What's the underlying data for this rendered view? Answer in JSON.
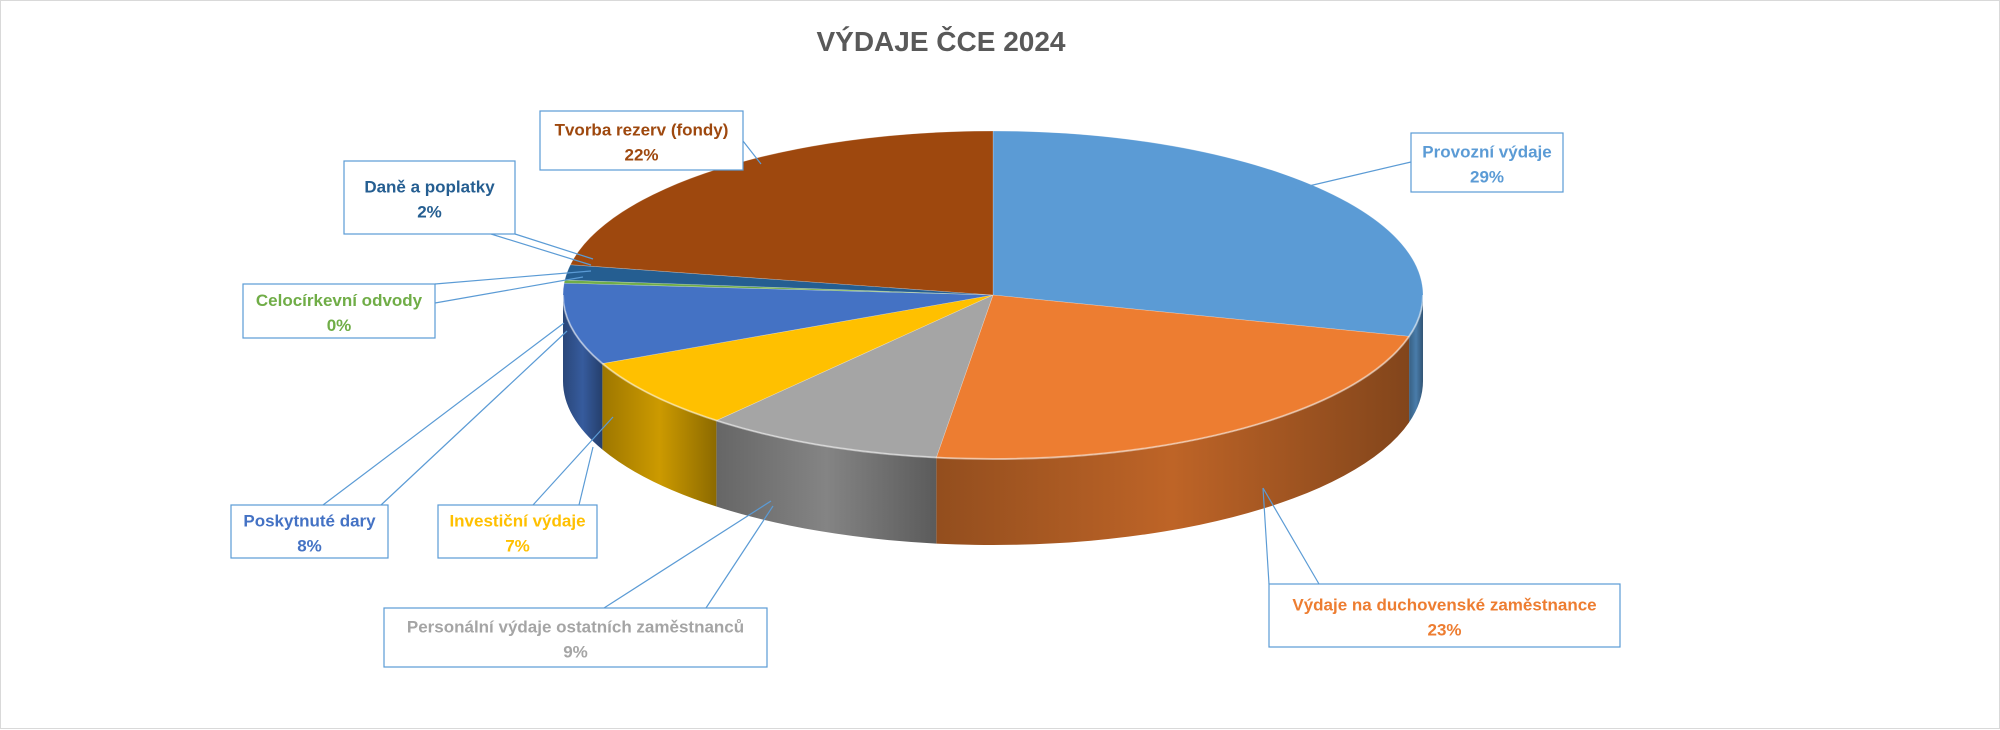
{
  "chart_data": {
    "type": "pie",
    "title": "VÝDAJE ČCE 2024",
    "slices": [
      {
        "label": "Provozní výdaje",
        "percent_label": "29%",
        "value": 29,
        "color": "#5B9BD5"
      },
      {
        "label": "Výdaje na  duchovenské zaměstnance",
        "percent_label": "23%",
        "value": 23,
        "color": "#ED7D31"
      },
      {
        "label": "Personální výdaje ostatních zaměstnanců",
        "percent_label": "9%",
        "value": 9,
        "color": "#A5A5A5"
      },
      {
        "label": "Investiční výdaje",
        "percent_label": "7%",
        "value": 7,
        "color": "#FFC000"
      },
      {
        "label": "Poskytnuté dary",
        "percent_label": "8%",
        "value": 8,
        "color": "#4472C4"
      },
      {
        "label": "Celocírkevní odvody",
        "percent_label": "0%",
        "value": 0.3,
        "color": "#70AD47"
      },
      {
        "label": "Daně a poplatky",
        "percent_label": "2%",
        "value": 1.5,
        "color": "#255E91"
      },
      {
        "label": "Tvorba rezerv (fondy)",
        "percent_label": "22%",
        "value": 22,
        "color": "#9E480E"
      }
    ]
  }
}
